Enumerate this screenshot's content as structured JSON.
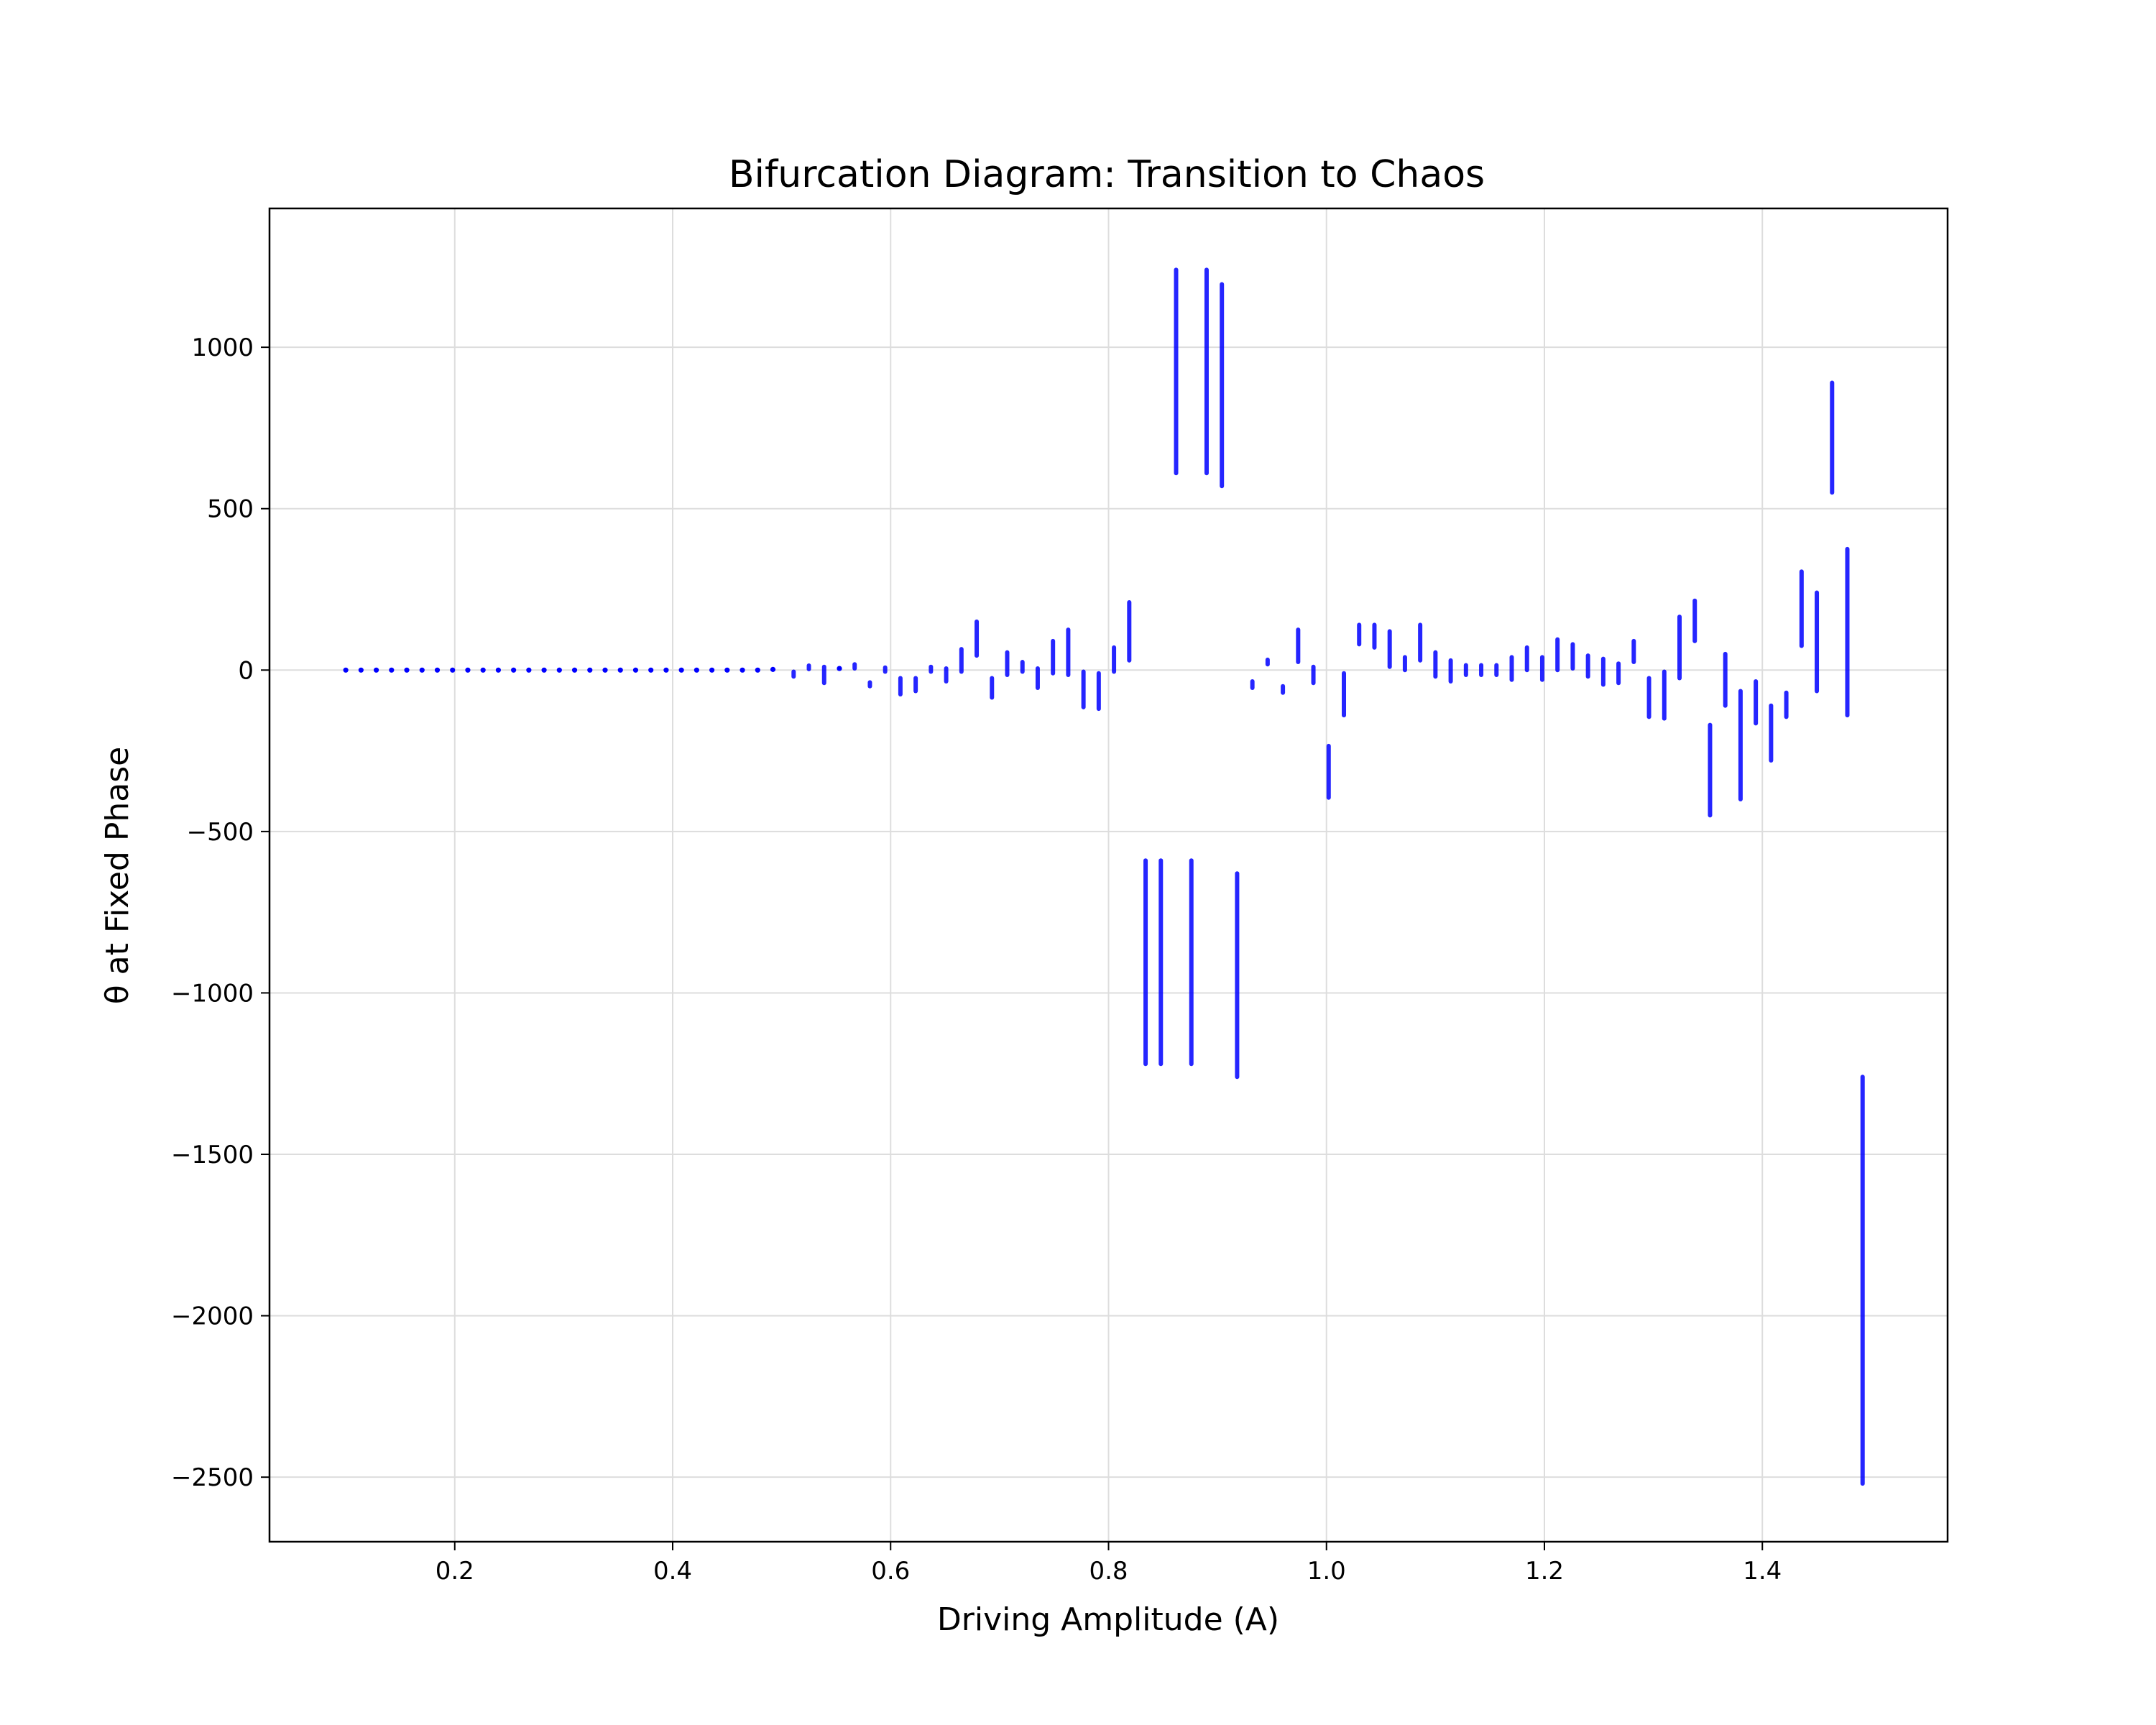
{
  "chart_data": {
    "type": "scatter",
    "title": "Bifurcation Diagram: Transition to Chaos",
    "xlabel": "Driving Amplitude (A)",
    "ylabel": "θ at Fixed Phase",
    "xlim": [
      0.03,
      1.57
    ],
    "ylim": [
      -2700,
      1430
    ],
    "xticks": [
      0.2,
      0.4,
      0.6,
      0.8,
      1.0,
      1.2,
      1.4
    ],
    "xtick_labels": [
      "0.2",
      "0.4",
      "0.6",
      "0.8",
      "1.0",
      "1.2",
      "1.4"
    ],
    "yticks": [
      -2500,
      -2000,
      -1500,
      -1000,
      -500,
      0,
      500,
      1000
    ],
    "ytick_labels": [
      "−2500",
      "−2000",
      "−1500",
      "−1000",
      "−500",
      "0",
      "500",
      "1000"
    ],
    "grid": true,
    "marker_color": "#0000ff",
    "series": [
      {
        "points": [
          {
            "x": 0.1,
            "y": 0,
            "ymin": 0,
            "ymax": 0
          },
          {
            "x": 0.114,
            "y": 0,
            "ymin": 0,
            "ymax": 0
          },
          {
            "x": 0.128,
            "y": 0,
            "ymin": 0,
            "ymax": 0
          },
          {
            "x": 0.142,
            "y": 0,
            "ymin": 0,
            "ymax": 0
          },
          {
            "x": 0.156,
            "y": 0,
            "ymin": 0,
            "ymax": 0
          },
          {
            "x": 0.17,
            "y": 0,
            "ymin": 0,
            "ymax": 0
          },
          {
            "x": 0.184,
            "y": 0,
            "ymin": 0,
            "ymax": 0
          },
          {
            "x": 0.198,
            "y": 0,
            "ymin": 0,
            "ymax": 0
          },
          {
            "x": 0.212,
            "y": 0,
            "ymin": 0,
            "ymax": 0
          },
          {
            "x": 0.226,
            "y": 0,
            "ymin": 0,
            "ymax": 0
          },
          {
            "x": 0.24,
            "y": 0,
            "ymin": 0,
            "ymax": 0
          },
          {
            "x": 0.254,
            "y": 0,
            "ymin": 0,
            "ymax": 0
          },
          {
            "x": 0.268,
            "y": 0,
            "ymin": 0,
            "ymax": 0
          },
          {
            "x": 0.282,
            "y": 0,
            "ymin": 0,
            "ymax": 0
          },
          {
            "x": 0.296,
            "y": 0,
            "ymin": 0,
            "ymax": 0
          },
          {
            "x": 0.31,
            "y": 0,
            "ymin": 0,
            "ymax": 0
          },
          {
            "x": 0.324,
            "y": 0,
            "ymin": 0,
            "ymax": 0
          },
          {
            "x": 0.338,
            "y": 0,
            "ymin": 0,
            "ymax": 0
          },
          {
            "x": 0.352,
            "y": 0,
            "ymin": 0,
            "ymax": 0
          },
          {
            "x": 0.366,
            "y": 0,
            "ymin": 0,
            "ymax": 0
          },
          {
            "x": 0.38,
            "y": 0,
            "ymin": 0,
            "ymax": 0
          },
          {
            "x": 0.394,
            "y": 0,
            "ymin": 0,
            "ymax": 0
          },
          {
            "x": 0.408,
            "y": 0,
            "ymin": 0,
            "ymax": 0
          },
          {
            "x": 0.422,
            "y": 0,
            "ymin": 0,
            "ymax": 0
          },
          {
            "x": 0.436,
            "y": 0,
            "ymin": 0,
            "ymax": 0
          },
          {
            "x": 0.45,
            "y": 0,
            "ymin": 0,
            "ymax": 0
          },
          {
            "x": 0.464,
            "y": 0,
            "ymin": 0,
            "ymax": 0
          },
          {
            "x": 0.478,
            "y": 0,
            "ymin": 0,
            "ymax": 0
          },
          {
            "x": 0.492,
            "y": 2,
            "ymin": 2,
            "ymax": 2
          },
          {
            "x": 0.511,
            "y": -12,
            "ymin": -20,
            "ymax": -5
          },
          {
            "x": 0.525,
            "y": 8,
            "ymin": 3,
            "ymax": 14
          },
          {
            "x": 0.539,
            "y": -15,
            "ymin": -40,
            "ymax": 10
          },
          {
            "x": 0.553,
            "y": 5,
            "ymin": 2,
            "ymax": 10
          },
          {
            "x": 0.567,
            "y": 10,
            "ymin": 5,
            "ymax": 18
          },
          {
            "x": 0.581,
            "y": -45,
            "ymin": -50,
            "ymax": -38
          },
          {
            "x": 0.595,
            "y": 2,
            "ymin": -5,
            "ymax": 8
          },
          {
            "x": 0.609,
            "y": -50,
            "ymin": -75,
            "ymax": -25
          },
          {
            "x": 0.623,
            "y": -45,
            "ymin": -65,
            "ymax": -25
          },
          {
            "x": 0.637,
            "y": 2,
            "ymin": -5,
            "ymax": 10
          },
          {
            "x": 0.651,
            "y": -15,
            "ymin": -35,
            "ymax": 5
          },
          {
            "x": 0.665,
            "y": 30,
            "ymin": -5,
            "ymax": 65
          },
          {
            "x": 0.679,
            "y": 100,
            "ymin": 45,
            "ymax": 150
          },
          {
            "x": 0.693,
            "y": -55,
            "ymin": -85,
            "ymax": -25
          },
          {
            "x": 0.707,
            "y": 20,
            "ymin": -15,
            "ymax": 55
          },
          {
            "x": 0.721,
            "y": 10,
            "ymin": -5,
            "ymax": 25
          },
          {
            "x": 0.735,
            "y": -25,
            "ymin": -55,
            "ymax": 5
          },
          {
            "x": 0.749,
            "y": 40,
            "ymin": -10,
            "ymax": 90
          },
          {
            "x": 0.763,
            "y": 55,
            "ymin": -15,
            "ymax": 125
          },
          {
            "x": 0.777,
            "y": -60,
            "ymin": -115,
            "ymax": -5
          },
          {
            "x": 0.791,
            "y": -65,
            "ymin": -120,
            "ymax": -10
          },
          {
            "x": 0.805,
            "y": 30,
            "ymin": -5,
            "ymax": 70
          },
          {
            "x": 0.819,
            "y": 120,
            "ymin": 30,
            "ymax": 210
          },
          {
            "x": 0.834,
            "y": -900,
            "ymin": -1220,
            "ymax": -590
          },
          {
            "x": 0.848,
            "y": -900,
            "ymin": -1220,
            "ymax": -590
          },
          {
            "x": 0.862,
            "y": 925,
            "ymin": 610,
            "ymax": 1240
          },
          {
            "x": 0.876,
            "y": -900,
            "ymin": -1220,
            "ymax": -590
          },
          {
            "x": 0.89,
            "y": 925,
            "ymin": 610,
            "ymax": 1240
          },
          {
            "x": 0.904,
            "y": 880,
            "ymin": 570,
            "ymax": 1195
          },
          {
            "x": 0.918,
            "y": -945,
            "ymin": -1260,
            "ymax": -630
          },
          {
            "x": 0.932,
            "y": -45,
            "ymin": -55,
            "ymax": -35
          },
          {
            "x": 0.946,
            "y": 25,
            "ymin": 18,
            "ymax": 32
          },
          {
            "x": 0.96,
            "y": -60,
            "ymin": -70,
            "ymax": -50
          },
          {
            "x": 0.974,
            "y": 75,
            "ymin": 25,
            "ymax": 125
          },
          {
            "x": 0.988,
            "y": -15,
            "ymin": -40,
            "ymax": 10
          },
          {
            "x": 1.002,
            "y": -310,
            "ymin": -395,
            "ymax": -235
          },
          {
            "x": 1.016,
            "y": -75,
            "ymin": -140,
            "ymax": -10
          },
          {
            "x": 1.03,
            "y": 110,
            "ymin": 80,
            "ymax": 140
          },
          {
            "x": 1.044,
            "y": 105,
            "ymin": 70,
            "ymax": 140
          },
          {
            "x": 1.058,
            "y": 65,
            "ymin": 10,
            "ymax": 120
          },
          {
            "x": 1.072,
            "y": 20,
            "ymin": 0,
            "ymax": 40
          },
          {
            "x": 1.086,
            "y": 85,
            "ymin": 30,
            "ymax": 140
          },
          {
            "x": 1.1,
            "y": 20,
            "ymin": -20,
            "ymax": 55
          },
          {
            "x": 1.114,
            "y": 0,
            "ymin": -35,
            "ymax": 30
          },
          {
            "x": 1.128,
            "y": 0,
            "ymin": -15,
            "ymax": 15
          },
          {
            "x": 1.142,
            "y": 0,
            "ymin": -15,
            "ymax": 15
          },
          {
            "x": 1.156,
            "y": 0,
            "ymin": -15,
            "ymax": 15
          },
          {
            "x": 1.17,
            "y": 5,
            "ymin": -30,
            "ymax": 40
          },
          {
            "x": 1.184,
            "y": 35,
            "ymin": 0,
            "ymax": 70
          },
          {
            "x": 1.198,
            "y": 5,
            "ymin": -30,
            "ymax": 40
          },
          {
            "x": 1.212,
            "y": 45,
            "ymin": 0,
            "ymax": 95
          },
          {
            "x": 1.226,
            "y": 40,
            "ymin": 5,
            "ymax": 80
          },
          {
            "x": 1.24,
            "y": 15,
            "ymin": -20,
            "ymax": 45
          },
          {
            "x": 1.254,
            "y": -5,
            "ymin": -45,
            "ymax": 35
          },
          {
            "x": 1.268,
            "y": -10,
            "ymin": -40,
            "ymax": 20
          },
          {
            "x": 1.282,
            "y": 55,
            "ymin": 25,
            "ymax": 90
          },
          {
            "x": 1.296,
            "y": -85,
            "ymin": -145,
            "ymax": -25
          },
          {
            "x": 1.31,
            "y": -75,
            "ymin": -150,
            "ymax": -5
          },
          {
            "x": 1.324,
            "y": 70,
            "ymin": -25,
            "ymax": 165
          },
          {
            "x": 1.338,
            "y": 150,
            "ymin": 90,
            "ymax": 215
          },
          {
            "x": 1.352,
            "y": -310,
            "ymin": -450,
            "ymax": -170
          },
          {
            "x": 1.366,
            "y": -30,
            "ymin": -110,
            "ymax": 50
          },
          {
            "x": 1.38,
            "y": -230,
            "ymin": -400,
            "ymax": -65
          },
          {
            "x": 1.394,
            "y": -100,
            "ymin": -165,
            "ymax": -35
          },
          {
            "x": 1.408,
            "y": -195,
            "ymin": -280,
            "ymax": -110
          },
          {
            "x": 1.422,
            "y": -105,
            "ymin": -145,
            "ymax": -70
          },
          {
            "x": 1.436,
            "y": 190,
            "ymin": 75,
            "ymax": 305
          },
          {
            "x": 1.45,
            "y": 85,
            "ymin": -65,
            "ymax": 240
          },
          {
            "x": 1.464,
            "y": 720,
            "ymin": 550,
            "ymax": 890
          },
          {
            "x": 1.478,
            "y": 115,
            "ymin": -140,
            "ymax": 375
          },
          {
            "x": 1.492,
            "y": -1890,
            "ymin": -2520,
            "ymax": -1260
          }
        ]
      }
    ]
  }
}
